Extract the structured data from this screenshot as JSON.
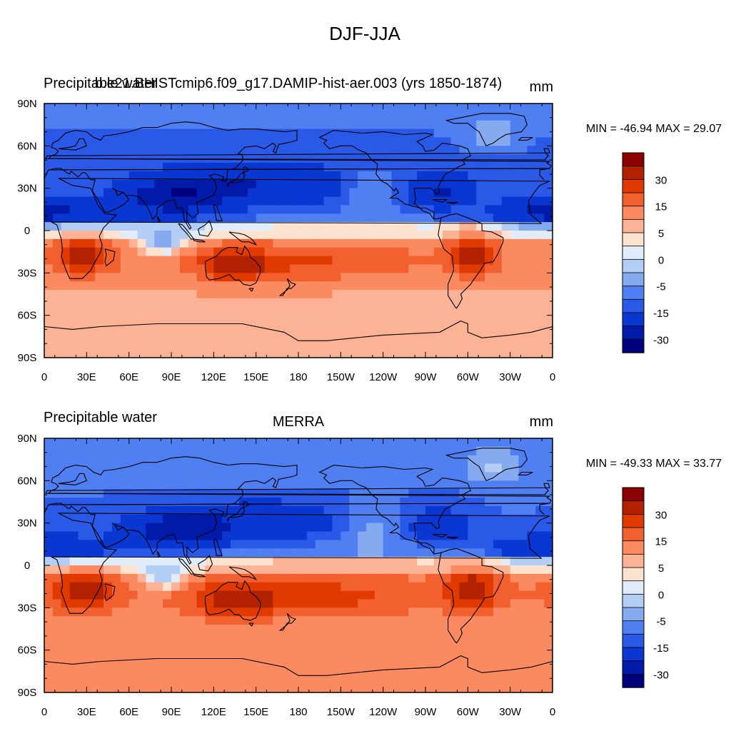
{
  "figure": {
    "title": "DJF-JJA"
  },
  "chart_data": [
    {
      "type": "heatmap",
      "left_label": "Precipitable water",
      "center_label": "b.e21.BHISTcmip6.f09_g17.DAMIP-hist-aer.003 (yrs 1850-1874)",
      "right_label": "mm",
      "stats_text": "MIN = -46.94 MAX =  29.07",
      "min": -46.94,
      "max": 29.07,
      "x_ticks": [
        "0",
        "30E",
        "60E",
        "90E",
        "120E",
        "150E",
        "180",
        "150W",
        "120W",
        "90W",
        "60W",
        "30W",
        "0"
      ],
      "y_ticks": [
        "90N",
        "60N",
        "30N",
        "0",
        "30S",
        "60S",
        "90S"
      ],
      "xlim": [
        0,
        360
      ],
      "ylim": [
        -90,
        90
      ],
      "colorbar_labels": [
        "30",
        "15",
        "5",
        "0",
        "-5",
        "-15",
        "-30"
      ],
      "levels": [
        -40,
        -30,
        -20,
        -15,
        -10,
        -5,
        -2,
        0,
        2,
        5,
        10,
        15,
        20,
        30,
        40
      ]
    },
    {
      "type": "heatmap",
      "left_label": "Precipitable water",
      "center_label": "MERRA",
      "right_label": "mm",
      "stats_text": "MIN = -49.33 MAX =  33.77",
      "min": -49.33,
      "max": 33.77,
      "x_ticks": [
        "0",
        "30E",
        "60E",
        "90E",
        "120E",
        "150E",
        "180",
        "150W",
        "120W",
        "90W",
        "60W",
        "30W",
        "0"
      ],
      "y_ticks": [
        "90N",
        "60N",
        "30N",
        "0",
        "30S",
        "60S",
        "90S"
      ],
      "xlim": [
        0,
        360
      ],
      "ylim": [
        -90,
        90
      ],
      "colorbar_labels": [
        "30",
        "15",
        "5",
        "0",
        "-5",
        "-15",
        "-30"
      ],
      "levels": [
        -40,
        -30,
        -20,
        -15,
        -10,
        -5,
        -2,
        0,
        2,
        5,
        10,
        15,
        20,
        30,
        40
      ]
    }
  ],
  "colors": {
    "colorbar": [
      "#8b0000",
      "#b22200",
      "#e03a00",
      "#f26030",
      "#fb8a60",
      "#fcb294",
      "#fde3cf",
      "#e0ecfa",
      "#b4cdf4",
      "#86aaf0",
      "#4f7ff0",
      "#2a59e8",
      "#0a36d2",
      "#021aa8",
      "#00007e"
    ]
  }
}
